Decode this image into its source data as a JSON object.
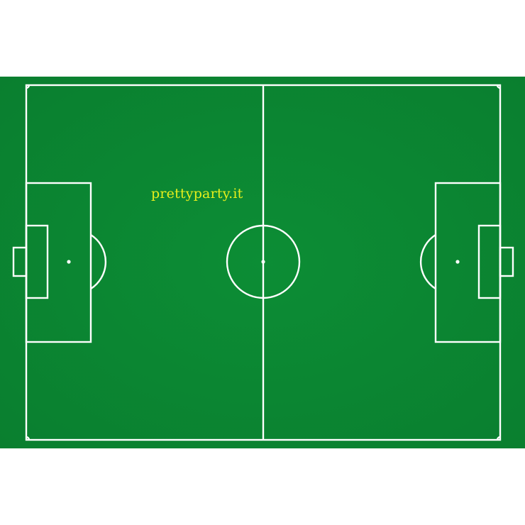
{
  "watermark": {
    "text": "prettyparty.it"
  },
  "colors": {
    "background": "#ffffff",
    "grass": "#0b8a33",
    "grass_edge": "#0a7e2e",
    "lines": "#ffffff",
    "watermark": "#e6ef1c"
  },
  "icons": [
    "football-pitch-diagram"
  ]
}
